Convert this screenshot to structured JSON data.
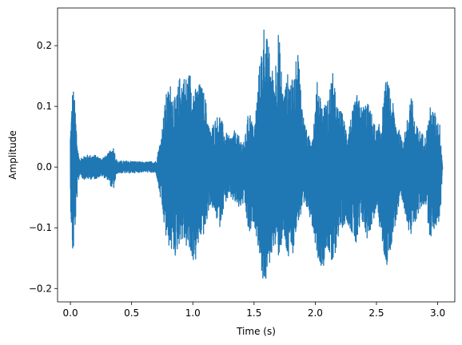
{
  "chart_data": {
    "type": "line",
    "title": "",
    "xlabel": "Time (s)",
    "ylabel": "Amplitude",
    "xlim": [
      -0.105,
      3.14
    ],
    "ylim": [
      -0.222,
      0.262
    ],
    "xticks": [
      0.0,
      0.5,
      1.0,
      1.5,
      2.0,
      2.5,
      3.0
    ],
    "xtick_labels": [
      "0.0",
      "0.5",
      "1.0",
      "1.5",
      "2.0",
      "2.5",
      "3.0"
    ],
    "yticks": [
      -0.2,
      -0.1,
      0.0,
      0.1,
      0.2
    ],
    "ytick_labels": [
      "−0.2",
      "−0.1",
      "0.0",
      "0.1",
      "0.2"
    ],
    "grid": false,
    "series": [
      {
        "color": "#1f77b4",
        "style": "waveform",
        "envelope_x": [
          0.0,
          0.02,
          0.04,
          0.06,
          0.08,
          0.1,
          0.14,
          0.2,
          0.25,
          0.3,
          0.35,
          0.38,
          0.42,
          0.5,
          0.6,
          0.7,
          0.74,
          0.78,
          0.82,
          0.86,
          0.9,
          0.94,
          0.98,
          1.02,
          1.06,
          1.1,
          1.14,
          1.18,
          1.22,
          1.26,
          1.3,
          1.34,
          1.38,
          1.42,
          1.46,
          1.5,
          1.54,
          1.58,
          1.6,
          1.62,
          1.66,
          1.7,
          1.74,
          1.78,
          1.82,
          1.86,
          1.9,
          1.94,
          1.98,
          2.02,
          2.06,
          2.1,
          2.14,
          2.18,
          2.22,
          2.26,
          2.3,
          2.34,
          2.38,
          2.42,
          2.46,
          2.5,
          2.54,
          2.58,
          2.62,
          2.66,
          2.7,
          2.74,
          2.78,
          2.82,
          2.86,
          2.9,
          2.94,
          2.98,
          3.02,
          3.04
        ],
        "envelope_max": [
          0.06,
          0.14,
          0.1,
          0.03,
          0.01,
          0.02,
          0.02,
          0.02,
          0.015,
          0.02,
          0.035,
          0.01,
          0.01,
          0.01,
          0.008,
          0.01,
          0.05,
          0.12,
          0.14,
          0.11,
          0.16,
          0.15,
          0.16,
          0.13,
          0.14,
          0.12,
          0.06,
          0.08,
          0.09,
          0.06,
          0.05,
          0.06,
          0.05,
          0.04,
          0.1,
          0.06,
          0.16,
          0.24,
          0.22,
          0.2,
          0.15,
          0.23,
          0.12,
          0.16,
          0.14,
          0.2,
          0.09,
          0.05,
          0.06,
          0.15,
          0.1,
          0.11,
          0.16,
          0.1,
          0.09,
          0.06,
          0.09,
          0.12,
          0.1,
          0.11,
          0.09,
          0.06,
          0.08,
          0.15,
          0.12,
          0.08,
          0.05,
          0.06,
          0.13,
          0.07,
          0.06,
          0.05,
          0.1,
          0.09,
          0.07,
          0.0
        ],
        "envelope_min": [
          -0.06,
          -0.158,
          -0.1,
          -0.03,
          -0.01,
          -0.02,
          -0.02,
          -0.02,
          -0.015,
          -0.02,
          -0.04,
          -0.01,
          -0.01,
          -0.01,
          -0.008,
          -0.01,
          -0.06,
          -0.12,
          -0.14,
          -0.15,
          -0.12,
          -0.13,
          -0.15,
          -0.16,
          -0.12,
          -0.11,
          -0.06,
          -0.08,
          -0.1,
          -0.06,
          -0.05,
          -0.06,
          -0.07,
          -0.06,
          -0.12,
          -0.09,
          -0.14,
          -0.2,
          -0.19,
          -0.17,
          -0.13,
          -0.15,
          -0.12,
          -0.16,
          -0.14,
          -0.09,
          -0.08,
          -0.07,
          -0.1,
          -0.15,
          -0.17,
          -0.13,
          -0.18,
          -0.12,
          -0.1,
          -0.09,
          -0.11,
          -0.14,
          -0.09,
          -0.12,
          -0.1,
          -0.07,
          -0.12,
          -0.17,
          -0.13,
          -0.09,
          -0.06,
          -0.08,
          -0.12,
          -0.09,
          -0.07,
          -0.06,
          -0.12,
          -0.1,
          -0.09,
          0.0
        ]
      }
    ]
  }
}
